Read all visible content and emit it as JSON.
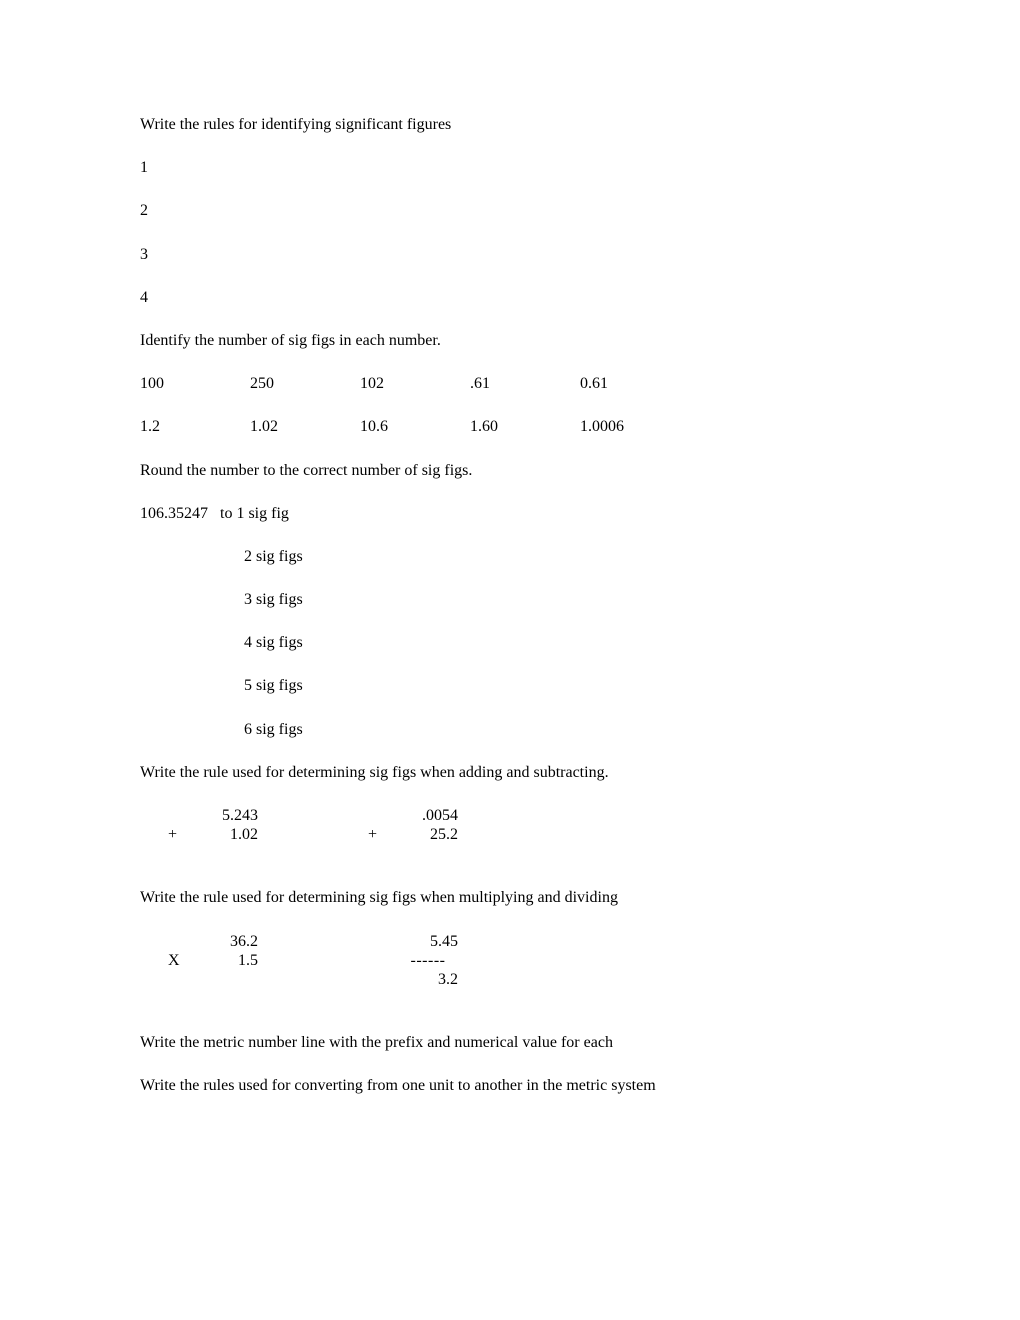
{
  "h_rules": "Write the rules for identifying significant figures",
  "r1": "1",
  "r2": "2",
  "r3": "3",
  "r4": "4",
  "h_identify": "Identify the number of sig figs in each number.",
  "row1": {
    "c1": "100",
    "c2": "250",
    "c3": "102",
    "c4": ".61",
    "c5": "0.61"
  },
  "row2": {
    "c1": "1.2",
    "c2": "1.02",
    "c3": "10.6",
    "c4": "1.60",
    "c5": "1.0006"
  },
  "h_round": "Round the number to the correct number of sig figs.",
  "round_first": "106.35247   to 1 sig fig",
  "round_2": "2 sig figs",
  "round_3": "3 sig figs",
  "round_4": "4 sig figs",
  "round_5": "5 sig figs",
  "round_6": "6 sig figs",
  "h_addsub": "Write the rule used for determining sig figs when adding and subtracting.",
  "add": {
    "a1": "5.243",
    "a2": "1.02",
    "b1": ".0054",
    "b2": "25.2",
    "plus": "+"
  },
  "h_muldiv": "Write the rule used for determining sig figs when multiplying and dividing",
  "mul": {
    "a1": "36.2",
    "a2": "1.5",
    "b1": "5.45",
    "bline": "------",
    "b2": "3.2",
    "x": "X"
  },
  "h_metric": "Write the metric number line with the prefix and numerical value for each",
  "h_convert": "Write the rules used for converting from one unit to another in the metric system"
}
